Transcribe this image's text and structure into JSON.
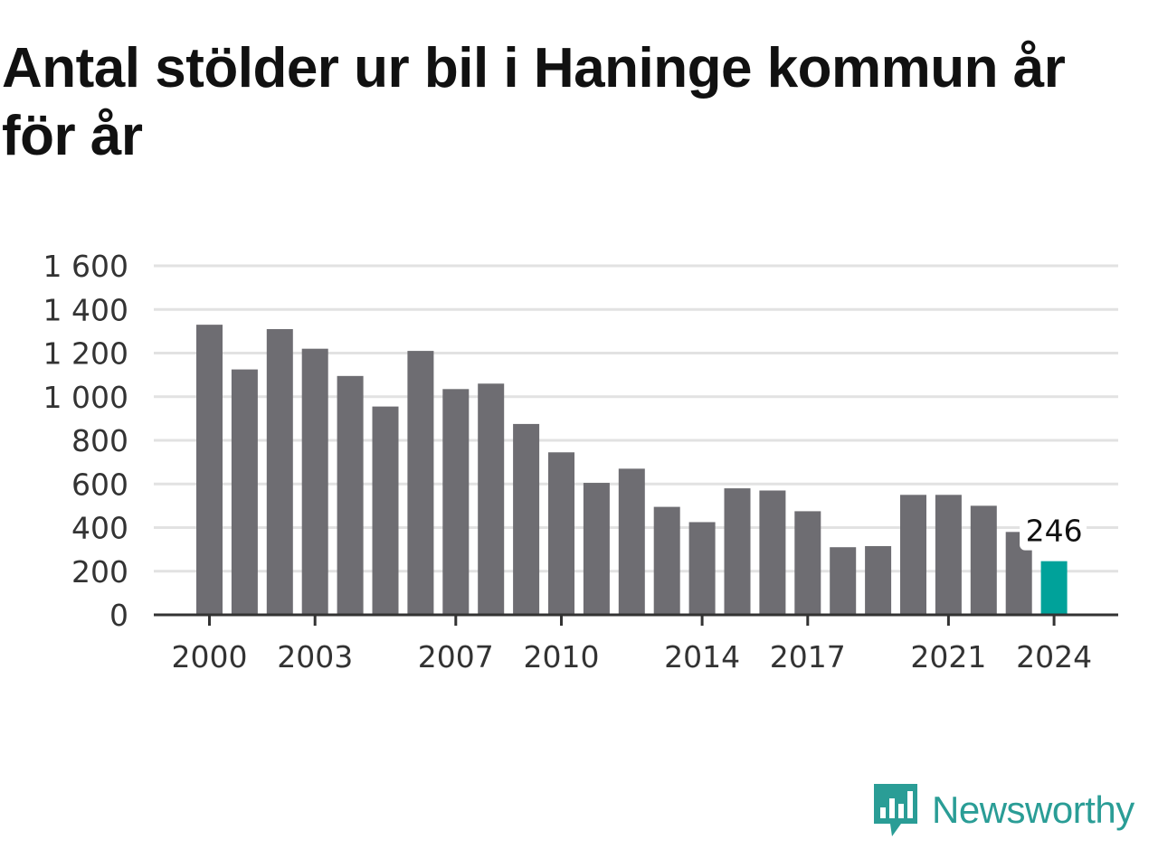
{
  "title": "Antal stölder ur bil i Haninge kommun år för år",
  "brand": {
    "name": "Newsworthy",
    "icon": "newsworthy-logo-icon",
    "color": "#2a9d96"
  },
  "colors": {
    "bar": "#6e6d72",
    "highlight": "#00a29a",
    "grid": "#e2e2e2",
    "axis": "#333333"
  },
  "chart_data": {
    "type": "bar",
    "title": "Antal stölder ur bil i Haninge kommun år för år",
    "x": [
      2000,
      2001,
      2002,
      2003,
      2004,
      2005,
      2006,
      2007,
      2008,
      2009,
      2010,
      2011,
      2012,
      2013,
      2014,
      2015,
      2016,
      2017,
      2018,
      2019,
      2020,
      2021,
      2022,
      2023,
      2024
    ],
    "values": [
      1330,
      1125,
      1310,
      1220,
      1095,
      955,
      1210,
      1035,
      1060,
      875,
      745,
      605,
      670,
      495,
      425,
      580,
      570,
      475,
      310,
      315,
      550,
      550,
      500,
      380,
      246
    ],
    "x_tick_labels": [
      "2000",
      "2003",
      "2007",
      "2010",
      "2014",
      "2017",
      "2021",
      "2024"
    ],
    "y_tick_labels": [
      "0",
      "200",
      "400",
      "600",
      "800",
      "1 000",
      "1 200",
      "1 400",
      "1 600"
    ],
    "y_ticks": [
      0,
      200,
      400,
      600,
      800,
      1000,
      1200,
      1400,
      1600
    ],
    "ylim": [
      0,
      1600
    ],
    "grid": true,
    "highlight": {
      "x": 2024,
      "label": "246"
    }
  }
}
